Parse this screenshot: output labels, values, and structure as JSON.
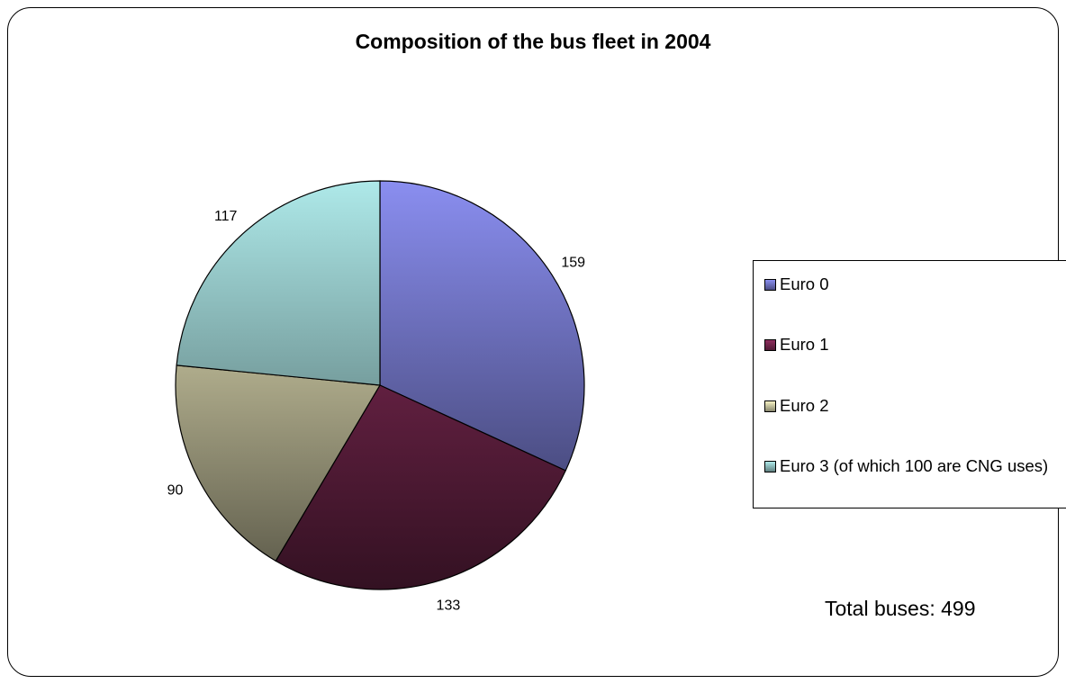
{
  "chart_data": {
    "type": "pie",
    "title": "Composition of the bus fleet in 2004",
    "categories": [
      "Euro 0",
      "Euro 1",
      "Euro 2",
      "Euro 3 (of which 100 are CNG uses)"
    ],
    "values": [
      159,
      133,
      90,
      117
    ],
    "data_labels": [
      "159",
      "133",
      "90",
      "117"
    ],
    "colors": [
      "#8a8ef0",
      "#8f2e5e",
      "#f6f2c4",
      "#aee9e9"
    ],
    "legend_position": "right",
    "start_angle_deg": 0,
    "direction": "clockwise"
  },
  "annotation": {
    "total_text": "Total buses: 499"
  }
}
